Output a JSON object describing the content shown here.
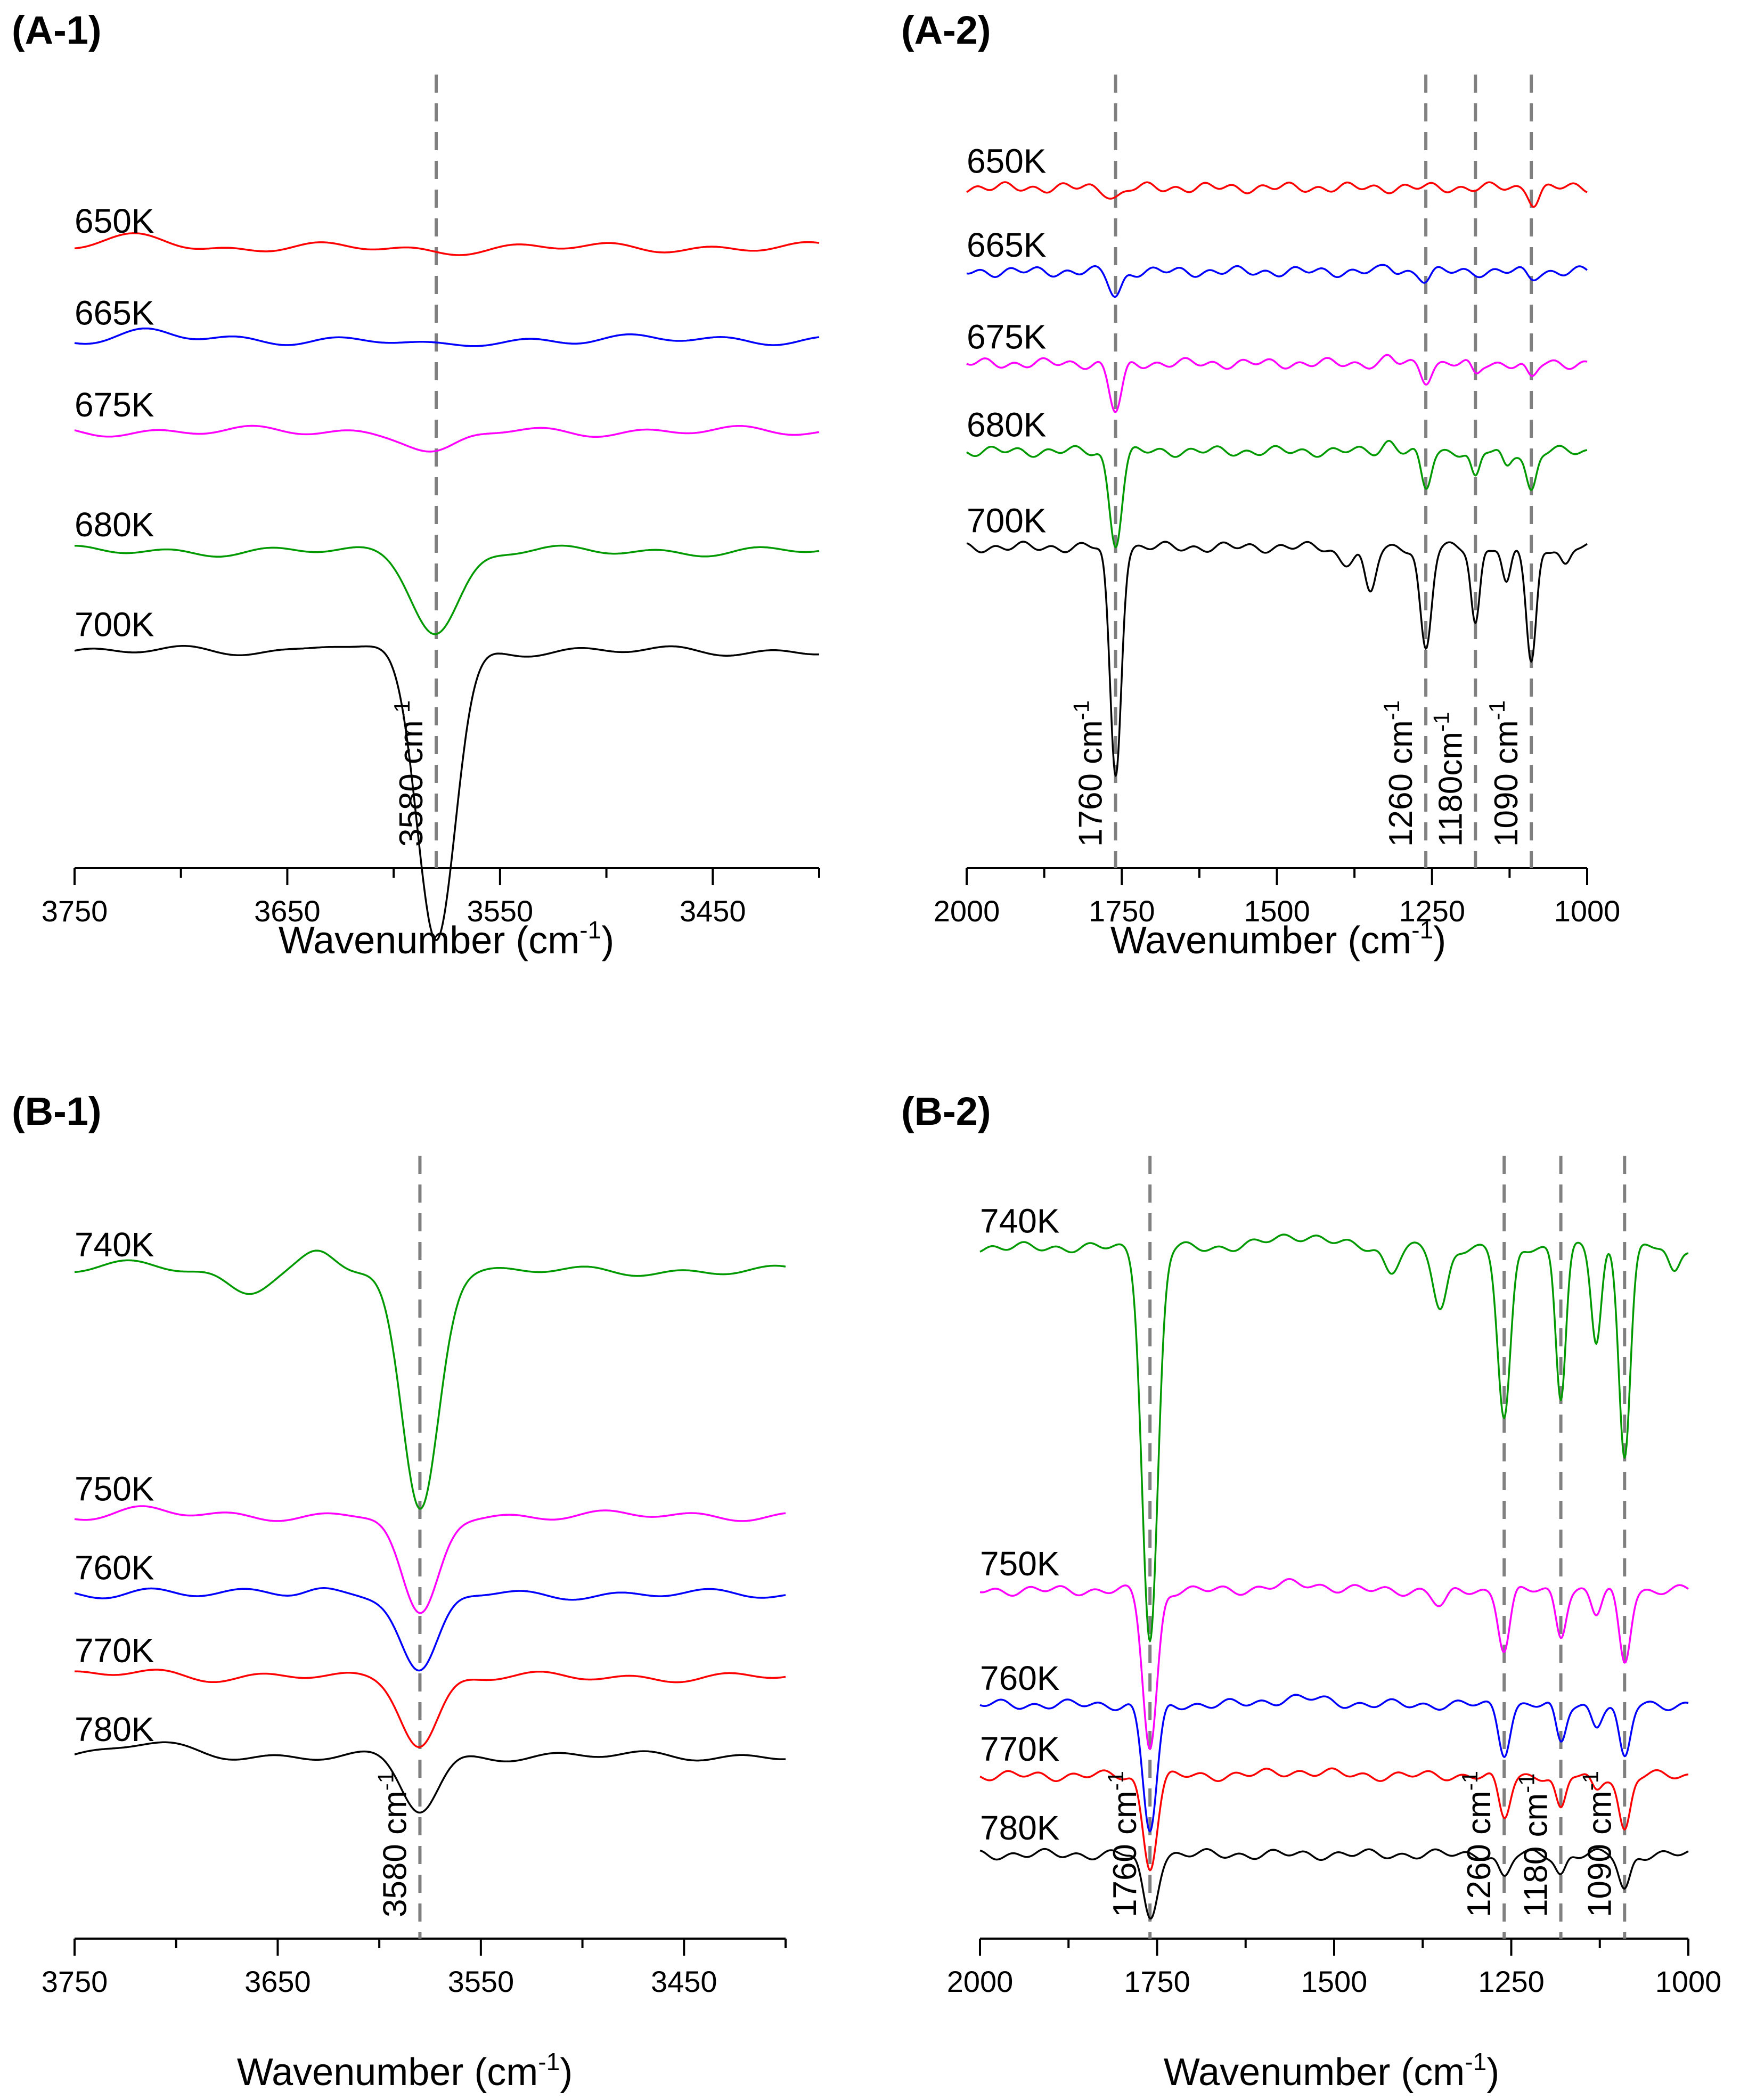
{
  "figure": {
    "colors": {
      "red": "#ff0000",
      "blue": "#0000ff",
      "magenta": "#ff00ff",
      "green": "#009a00",
      "black": "#000000",
      "guide": "#808080"
    }
  },
  "chart_data": [
    {
      "id": "A-1",
      "type": "line",
      "panel_label": "(A-1)",
      "title": "",
      "xlabel": "Wavenumber (cm",
      "xlabel_sup": "-1",
      "xlabel_close": ")",
      "ylabel": "",
      "xlim": [
        3750,
        3400
      ],
      "x_major_ticks": [
        3750,
        3650,
        3550,
        3450
      ],
      "tick_labels": [
        "3750",
        "3650",
        "3550",
        "3450"
      ],
      "grid": false,
      "offset_spectra": true,
      "marker_lines": [
        3580
      ],
      "annotations": [
        {
          "text": "3580 cm",
          "sup": "-1",
          "at": 3580
        }
      ],
      "series": [
        {
          "name": "650K",
          "color": "red",
          "baseline": 0.77,
          "features": [
            {
              "x": 3715,
              "depth": -0.015,
              "width": 14
            },
            {
              "x": 3690,
              "depth": 0.003,
              "width": 10
            },
            {
              "x": 3580,
              "depth": 0.004,
              "width": 12
            }
          ]
        },
        {
          "name": "665K",
          "color": "blue",
          "baseline": 0.655,
          "features": [
            {
              "x": 3715,
              "depth": -0.008,
              "width": 12
            },
            {
              "x": 3580,
              "depth": 0.01,
              "width": 14
            }
          ]
        },
        {
          "name": "675K",
          "color": "magenta",
          "baseline": 0.54,
          "features": [
            {
              "x": 3580,
              "depth": 0.028,
              "width": 11
            }
          ]
        },
        {
          "name": "680K",
          "color": "green",
          "baseline": 0.39,
          "features": [
            {
              "x": 3580,
              "depth": 0.1,
              "width": 11
            }
          ]
        },
        {
          "name": "700K",
          "color": "black",
          "baseline": 0.265,
          "features": [
            {
              "x": 3630,
              "depth": -0.01,
              "width": 10
            },
            {
              "x": 3580,
              "depth": 0.36,
              "width": 9
            }
          ]
        }
      ]
    },
    {
      "id": "A-2",
      "type": "line",
      "panel_label": "(A-2)",
      "title": "",
      "xlabel": "Wavenumber (cm",
      "xlabel_sup": "-1",
      "xlabel_close": ")",
      "ylabel": "",
      "xlim": [
        2000,
        1000
      ],
      "x_major_ticks": [
        2000,
        1750,
        1500,
        1250,
        1000
      ],
      "tick_labels": [
        "2000",
        "1750",
        "1500",
        "1250",
        "1000"
      ],
      "grid": false,
      "offset_spectra": true,
      "marker_lines": [
        1760,
        1260,
        1180,
        1090
      ],
      "annotations": [
        {
          "text": "1760 cm",
          "sup": "-1",
          "at": 1760
        },
        {
          "text": "1260 cm",
          "sup": "-1",
          "at": 1260
        },
        {
          "text": "1180cm",
          "sup": "-1",
          "at": 1180
        },
        {
          "text": "1090 cm",
          "sup": "-1",
          "at": 1090
        }
      ],
      "series": [
        {
          "name": "650K",
          "color": "red",
          "baseline": 0.845,
          "features": [
            {
              "x": 1760,
              "depth": 0.012,
              "width": 12
            },
            {
              "x": 1085,
              "depth": 0.018,
              "width": 8
            }
          ]
        },
        {
          "name": "665K",
          "color": "blue",
          "baseline": 0.74,
          "features": [
            {
              "x": 1760,
              "depth": 0.03,
              "width": 10
            },
            {
              "x": 1320,
              "depth": -0.006,
              "width": 8
            },
            {
              "x": 1260,
              "depth": 0.01,
              "width": 8
            },
            {
              "x": 1090,
              "depth": 0.008,
              "width": 8
            }
          ]
        },
        {
          "name": "675K",
          "color": "magenta",
          "baseline": 0.625,
          "features": [
            {
              "x": 1760,
              "depth": 0.06,
              "width": 10
            },
            {
              "x": 1320,
              "depth": -0.006,
              "width": 8
            },
            {
              "x": 1260,
              "depth": 0.02,
              "width": 8
            },
            {
              "x": 1180,
              "depth": 0.015,
              "width": 7
            },
            {
              "x": 1090,
              "depth": 0.02,
              "width": 8
            }
          ]
        },
        {
          "name": "680K",
          "color": "green",
          "baseline": 0.515,
          "features": [
            {
              "x": 1760,
              "depth": 0.115,
              "width": 10
            },
            {
              "x": 1320,
              "depth": -0.012,
              "width": 10
            },
            {
              "x": 1260,
              "depth": 0.048,
              "width": 8
            },
            {
              "x": 1180,
              "depth": 0.035,
              "width": 7
            },
            {
              "x": 1130,
              "depth": 0.02,
              "width": 7
            },
            {
              "x": 1090,
              "depth": 0.05,
              "width": 8
            }
          ]
        },
        {
          "name": "700K",
          "color": "black",
          "baseline": 0.395,
          "features": [
            {
              "x": 1760,
              "depth": 0.285,
              "width": 9
            },
            {
              "x": 1390,
              "depth": 0.02,
              "width": 12
            },
            {
              "x": 1350,
              "depth": 0.06,
              "width": 9
            },
            {
              "x": 1260,
              "depth": 0.13,
              "width": 9
            },
            {
              "x": 1180,
              "depth": 0.095,
              "width": 7
            },
            {
              "x": 1130,
              "depth": 0.05,
              "width": 7
            },
            {
              "x": 1090,
              "depth": 0.145,
              "width": 8
            },
            {
              "x": 1035,
              "depth": 0.025,
              "width": 8
            }
          ]
        }
      ]
    },
    {
      "id": "B-1",
      "type": "line",
      "panel_label": "(B-1)",
      "title": "",
      "xlabel": "Wavenumber (cm",
      "xlabel_sup": "-1",
      "xlabel_close": ")",
      "ylabel": "",
      "xlim": [
        3750,
        3400
      ],
      "x_major_ticks": [
        3750,
        3650,
        3550,
        3450
      ],
      "tick_labels": [
        "3750",
        "3650",
        "3550",
        "3450"
      ],
      "grid": false,
      "offset_spectra": true,
      "marker_lines": [
        3580
      ],
      "annotations": [
        {
          "text": "3580 cm",
          "sup": "-1",
          "at": 3580
        }
      ],
      "series": [
        {
          "name": "740K",
          "color": "green",
          "baseline": 0.84,
          "features": [
            {
              "x": 3715,
              "depth": -0.01,
              "width": 14
            },
            {
              "x": 3665,
              "depth": 0.025,
              "width": 10
            },
            {
              "x": 3630,
              "depth": -0.02,
              "width": 8
            },
            {
              "x": 3580,
              "depth": 0.3,
              "width": 9
            }
          ]
        },
        {
          "name": "750K",
          "color": "magenta",
          "baseline": 0.53,
          "features": [
            {
              "x": 3715,
              "depth": -0.006,
              "width": 12
            },
            {
              "x": 3580,
              "depth": 0.13,
              "width": 9
            }
          ]
        },
        {
          "name": "760K",
          "color": "blue",
          "baseline": 0.43,
          "features": [
            {
              "x": 3715,
              "depth": -0.006,
              "width": 12
            },
            {
              "x": 3630,
              "depth": -0.008,
              "width": 8
            },
            {
              "x": 3580,
              "depth": 0.1,
              "width": 9
            }
          ]
        },
        {
          "name": "770K",
          "color": "red",
          "baseline": 0.325,
          "features": [
            {
              "x": 3715,
              "depth": -0.008,
              "width": 14
            },
            {
              "x": 3580,
              "depth": 0.085,
              "width": 9
            }
          ]
        },
        {
          "name": "780K",
          "color": "black",
          "baseline": 0.225,
          "features": [
            {
              "x": 3715,
              "depth": -0.015,
              "width": 16
            },
            {
              "x": 3580,
              "depth": 0.07,
              "width": 9
            }
          ]
        }
      ]
    },
    {
      "id": "B-2",
      "type": "line",
      "panel_label": "(B-2)",
      "title": "",
      "xlabel": "Wavenumber (cm",
      "xlabel_sup": "-1",
      "xlabel_close": ")",
      "ylabel": "",
      "xlim": [
        2000,
        1000
      ],
      "x_major_ticks": [
        2000,
        1750,
        1500,
        1250,
        1000
      ],
      "tick_labels": [
        "2000",
        "1750",
        "1500",
        "1250",
        "1000"
      ],
      "grid": false,
      "offset_spectra": true,
      "marker_lines": [
        1760,
        1260,
        1180,
        1090
      ],
      "annotations": [
        {
          "text": "1760 cm",
          "sup": "-1",
          "at": 1760
        },
        {
          "text": "1260 cm",
          "sup": "-1",
          "at": 1260
        },
        {
          "text": "1180 cm",
          "sup": "-1",
          "at": 1180
        },
        {
          "text": "1090 cm",
          "sup": "-1",
          "at": 1090
        }
      ],
      "series": [
        {
          "name": "740K",
          "color": "green",
          "baseline": 0.87,
          "features": [
            {
              "x": 1760,
              "depth": 0.5,
              "width": 11
            },
            {
              "x": 1550,
              "depth": -0.015,
              "width": 40
            },
            {
              "x": 1420,
              "depth": 0.03,
              "width": 10
            },
            {
              "x": 1350,
              "depth": 0.08,
              "width": 10
            },
            {
              "x": 1260,
              "depth": 0.22,
              "width": 9
            },
            {
              "x": 1180,
              "depth": 0.19,
              "width": 7
            },
            {
              "x": 1130,
              "depth": 0.12,
              "width": 7
            },
            {
              "x": 1090,
              "depth": 0.26,
              "width": 8
            },
            {
              "x": 1020,
              "depth": 0.035,
              "width": 8
            }
          ]
        },
        {
          "name": "750K",
          "color": "magenta",
          "baseline": 0.435,
          "features": [
            {
              "x": 1760,
              "depth": 0.2,
              "width": 10
            },
            {
              "x": 1550,
              "depth": -0.008,
              "width": 40
            },
            {
              "x": 1350,
              "depth": 0.02,
              "width": 10
            },
            {
              "x": 1260,
              "depth": 0.075,
              "width": 8
            },
            {
              "x": 1180,
              "depth": 0.055,
              "width": 7
            },
            {
              "x": 1130,
              "depth": 0.03,
              "width": 7
            },
            {
              "x": 1090,
              "depth": 0.09,
              "width": 8
            }
          ]
        },
        {
          "name": "760K",
          "color": "blue",
          "baseline": 0.29,
          "features": [
            {
              "x": 1760,
              "depth": 0.16,
              "width": 10
            },
            {
              "x": 1550,
              "depth": -0.008,
              "width": 40
            },
            {
              "x": 1260,
              "depth": 0.06,
              "width": 8
            },
            {
              "x": 1180,
              "depth": 0.05,
              "width": 7
            },
            {
              "x": 1130,
              "depth": 0.025,
              "width": 7
            },
            {
              "x": 1090,
              "depth": 0.07,
              "width": 8
            }
          ]
        },
        {
          "name": "770K",
          "color": "red",
          "baseline": 0.2,
          "features": [
            {
              "x": 1760,
              "depth": 0.115,
              "width": 10
            },
            {
              "x": 1550,
              "depth": -0.005,
              "width": 40
            },
            {
              "x": 1260,
              "depth": 0.055,
              "width": 8
            },
            {
              "x": 1180,
              "depth": 0.045,
              "width": 7
            },
            {
              "x": 1130,
              "depth": 0.02,
              "width": 7
            },
            {
              "x": 1090,
              "depth": 0.07,
              "width": 8
            }
          ]
        },
        {
          "name": "780K",
          "color": "black",
          "baseline": 0.1,
          "features": [
            {
              "x": 1760,
              "depth": 0.08,
              "width": 10
            },
            {
              "x": 1260,
              "depth": 0.03,
              "width": 8
            },
            {
              "x": 1180,
              "depth": 0.025,
              "width": 7
            },
            {
              "x": 1090,
              "depth": 0.045,
              "width": 8
            }
          ]
        }
      ]
    }
  ]
}
